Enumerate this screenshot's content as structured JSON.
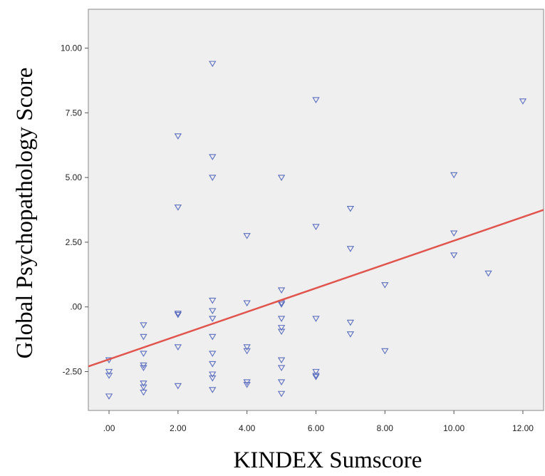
{
  "chart_data": {
    "type": "scatter",
    "xlabel": "KINDEX Sumscore",
    "ylabel": "Global Psychopathology Score",
    "xlim": [
      -0.6,
      12.6
    ],
    "ylim": [
      -4.0,
      11.5
    ],
    "x_ticks": [
      {
        "value": 0,
        "label": ".00"
      },
      {
        "value": 2,
        "label": "2.00"
      },
      {
        "value": 4,
        "label": "4.00"
      },
      {
        "value": 6,
        "label": "6.00"
      },
      {
        "value": 8,
        "label": "8.00"
      },
      {
        "value": 10,
        "label": "10.00"
      },
      {
        "value": 12,
        "label": "12.00"
      }
    ],
    "y_ticks": [
      {
        "value": -2.5,
        "label": "-2.50"
      },
      {
        "value": 0,
        "label": ".00"
      },
      {
        "value": 2.5,
        "label": "2.50"
      },
      {
        "value": 5,
        "label": "5.00"
      },
      {
        "value": 7.5,
        "label": "7.50"
      },
      {
        "value": 10,
        "label": "10.00"
      }
    ],
    "grid": false,
    "plot_background": "#efefef",
    "marker": "triangle-down",
    "marker_color": "#5b6dbf",
    "fit_line_color": "#e0554d",
    "fit_line": {
      "x": [
        -0.6,
        12.6
      ],
      "y": [
        -2.3,
        3.75
      ]
    },
    "points": [
      {
        "x": 0,
        "y": -2.05
      },
      {
        "x": 0,
        "y": -2.5
      },
      {
        "x": 0,
        "y": -2.65
      },
      {
        "x": 0,
        "y": -3.45
      },
      {
        "x": 1,
        "y": -0.7
      },
      {
        "x": 1,
        "y": -1.15
      },
      {
        "x": 1,
        "y": -1.8
      },
      {
        "x": 1,
        "y": -2.25
      },
      {
        "x": 1,
        "y": -2.35
      },
      {
        "x": 1,
        "y": -2.95
      },
      {
        "x": 1,
        "y": -3.1
      },
      {
        "x": 1,
        "y": -3.3
      },
      {
        "x": 2,
        "y": 6.6
      },
      {
        "x": 2,
        "y": 3.85
      },
      {
        "x": 2,
        "y": -0.25
      },
      {
        "x": 2,
        "y": -0.3
      },
      {
        "x": 2,
        "y": -1.55
      },
      {
        "x": 2,
        "y": -3.05
      },
      {
        "x": 3,
        "y": 9.4
      },
      {
        "x": 3,
        "y": 5.8
      },
      {
        "x": 3,
        "y": 5.0
      },
      {
        "x": 3,
        "y": 0.25
      },
      {
        "x": 3,
        "y": -0.15
      },
      {
        "x": 3,
        "y": -0.45
      },
      {
        "x": 3,
        "y": -1.15
      },
      {
        "x": 3,
        "y": -1.8
      },
      {
        "x": 3,
        "y": -2.2
      },
      {
        "x": 3,
        "y": -2.6
      },
      {
        "x": 3,
        "y": -2.75
      },
      {
        "x": 3,
        "y": -3.2
      },
      {
        "x": 4,
        "y": 2.75
      },
      {
        "x": 4,
        "y": 0.15
      },
      {
        "x": 4,
        "y": -1.55
      },
      {
        "x": 4,
        "y": -1.7
      },
      {
        "x": 4,
        "y": -2.9
      },
      {
        "x": 4,
        "y": -3.0
      },
      {
        "x": 5,
        "y": 5.0
      },
      {
        "x": 5,
        "y": 0.65
      },
      {
        "x": 5,
        "y": 0.15
      },
      {
        "x": 5,
        "y": 0.1
      },
      {
        "x": 5,
        "y": -0.45
      },
      {
        "x": 5,
        "y": -0.8
      },
      {
        "x": 5,
        "y": -0.95
      },
      {
        "x": 5,
        "y": -2.05
      },
      {
        "x": 5,
        "y": -2.35
      },
      {
        "x": 5,
        "y": -2.9
      },
      {
        "x": 5,
        "y": -3.35
      },
      {
        "x": 6,
        "y": 8.0
      },
      {
        "x": 6,
        "y": 3.1
      },
      {
        "x": 6,
        "y": -0.45
      },
      {
        "x": 6,
        "y": -2.5
      },
      {
        "x": 6,
        "y": -2.65
      },
      {
        "x": 6,
        "y": -2.7
      },
      {
        "x": 7,
        "y": 3.8
      },
      {
        "x": 7,
        "y": 2.25
      },
      {
        "x": 7,
        "y": -0.6
      },
      {
        "x": 7,
        "y": -1.05
      },
      {
        "x": 8,
        "y": 0.85
      },
      {
        "x": 8,
        "y": -1.7
      },
      {
        "x": 10,
        "y": 5.1
      },
      {
        "x": 10,
        "y": 2.85
      },
      {
        "x": 10,
        "y": 2.0
      },
      {
        "x": 11,
        "y": 1.3
      },
      {
        "x": 12,
        "y": 7.95
      }
    ]
  }
}
